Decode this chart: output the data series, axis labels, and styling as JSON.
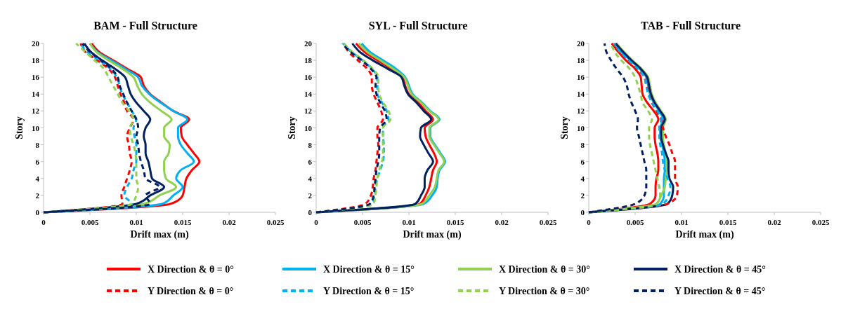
{
  "chart_data": [
    {
      "type": "line",
      "title": "BAM - Full Structure",
      "xlabel": "Drift max (m)",
      "ylabel": "Story",
      "xlim": [
        0,
        0.025
      ],
      "xticks": [
        0,
        0.005,
        0.01,
        0.015,
        0.02,
        0.025
      ],
      "ylim": [
        0,
        20
      ],
      "yticks": [
        0,
        2,
        4,
        6,
        8,
        10,
        12,
        14,
        16,
        18,
        20
      ],
      "legend": "bottom",
      "series": [
        {
          "name": "X Direction & θ = 0°",
          "color": "#ff0000",
          "line_style": "solid",
          "x": [
            0,
            0.0137,
            0.015,
            0.0152,
            0.0154,
            0.016,
            0.0168,
            0.0162,
            0.0155,
            0.0149,
            0.0148,
            0.0157,
            0.014,
            0.0127,
            0.0115,
            0.0108,
            0.0105,
            0.009,
            0.0075,
            0.006,
            0.0052
          ],
          "values": [
            0,
            1,
            2,
            3,
            4,
            5,
            6,
            7,
            8,
            9,
            10,
            11,
            12,
            13,
            14,
            15,
            16,
            17,
            18,
            19,
            20
          ]
        },
        {
          "name": "X Direction & θ = 15°",
          "color": "#00b0f0",
          "line_style": "solid",
          "x": [
            0,
            0.0128,
            0.014,
            0.015,
            0.0143,
            0.0148,
            0.0162,
            0.0155,
            0.0148,
            0.0145,
            0.0145,
            0.0155,
            0.014,
            0.0126,
            0.0114,
            0.0106,
            0.0102,
            0.0088,
            0.0073,
            0.0058,
            0.005
          ],
          "values": [
            0,
            1,
            2,
            3,
            4,
            5,
            6,
            7,
            8,
            9,
            10,
            11,
            12,
            13,
            14,
            15,
            16,
            17,
            18,
            19,
            20
          ]
        },
        {
          "name": "X Direction & θ = 30°",
          "color": "#92d050",
          "line_style": "solid",
          "x": [
            0,
            0.0108,
            0.0125,
            0.0143,
            0.0132,
            0.013,
            0.013,
            0.0135,
            0.0136,
            0.013,
            0.013,
            0.0138,
            0.0127,
            0.0115,
            0.0106,
            0.0101,
            0.0097,
            0.0085,
            0.007,
            0.0057,
            0.005
          ],
          "values": [
            0,
            1,
            2,
            3,
            4,
            5,
            6,
            7,
            8,
            9,
            10,
            11,
            12,
            13,
            14,
            15,
            16,
            17,
            18,
            19,
            20
          ]
        },
        {
          "name": "X Direction & θ = 45°",
          "color": "#002060",
          "line_style": "solid",
          "x": [
            0,
            0.01,
            0.0115,
            0.013,
            0.0117,
            0.0115,
            0.0113,
            0.011,
            0.011,
            0.0108,
            0.011,
            0.0115,
            0.0108,
            0.01,
            0.0094,
            0.0091,
            0.0088,
            0.0077,
            0.0063,
            0.0051,
            0.0044
          ],
          "values": [
            0,
            1,
            2,
            3,
            4,
            5,
            6,
            7,
            8,
            9,
            10,
            11,
            12,
            13,
            14,
            15,
            16,
            17,
            18,
            19,
            20
          ]
        },
        {
          "name": "Y Direction & θ = 0°",
          "color": "#ff0000",
          "line_style": "dashed",
          "x": [
            0,
            0.0085,
            0.0084,
            0.0087,
            0.009,
            0.0093,
            0.0095,
            0.0093,
            0.0092,
            0.009,
            0.0093,
            0.0097,
            0.009,
            0.0087,
            0.0083,
            0.008,
            0.0077,
            0.007,
            0.0058,
            0.0045,
            0.004
          ],
          "values": [
            0,
            1,
            2,
            3,
            4,
            5,
            6,
            7,
            8,
            9,
            10,
            11,
            12,
            13,
            14,
            15,
            16,
            17,
            18,
            19,
            20
          ]
        },
        {
          "name": "Y Direction & θ = 15°",
          "color": "#00b0f0",
          "line_style": "dashed",
          "x": [
            0,
            0.0095,
            0.0087,
            0.009,
            0.0095,
            0.0097,
            0.01,
            0.01,
            0.01,
            0.0098,
            0.0097,
            0.01,
            0.0095,
            0.009,
            0.0085,
            0.0082,
            0.0079,
            0.0072,
            0.006,
            0.0047,
            0.004
          ],
          "values": [
            0,
            1,
            2,
            3,
            4,
            5,
            6,
            7,
            8,
            9,
            10,
            11,
            12,
            13,
            14,
            15,
            16,
            17,
            18,
            19,
            20
          ]
        },
        {
          "name": "Y Direction & θ = 30°",
          "color": "#92d050",
          "line_style": "dashed",
          "x": [
            0,
            0.0095,
            0.01,
            0.0102,
            0.01,
            0.01,
            0.01,
            0.0099,
            0.0097,
            0.0094,
            0.0093,
            0.0097,
            0.0092,
            0.0085,
            0.008,
            0.0075,
            0.007,
            0.0065,
            0.0055,
            0.0045,
            0.0035
          ],
          "values": [
            0,
            1,
            2,
            3,
            4,
            5,
            6,
            7,
            8,
            9,
            10,
            11,
            12,
            13,
            14,
            15,
            16,
            17,
            18,
            19,
            20
          ]
        },
        {
          "name": "Y Direction & θ = 45°",
          "color": "#002060",
          "line_style": "dashed",
          "x": [
            0,
            0.0115,
            0.011,
            0.0125,
            0.011,
            0.0108,
            0.0105,
            0.0103,
            0.0102,
            0.01,
            0.0102,
            0.01,
            0.0095,
            0.009,
            0.0086,
            0.0082,
            0.008,
            0.0073,
            0.0062,
            0.005,
            0.0042
          ],
          "values": [
            0,
            1,
            2,
            3,
            4,
            5,
            6,
            7,
            8,
            9,
            10,
            11,
            12,
            13,
            14,
            15,
            16,
            17,
            18,
            19,
            20
          ]
        }
      ]
    },
    {
      "type": "line",
      "title": "SYL - Full Structure",
      "xlabel": "Drift max (m)",
      "ylabel": "Story",
      "xlim": [
        0,
        0.025
      ],
      "xticks": [
        0,
        0.005,
        0.01,
        0.015,
        0.02,
        0.025
      ],
      "ylim": [
        0,
        20
      ],
      "yticks": [
        0,
        2,
        4,
        6,
        8,
        10,
        12,
        14,
        16,
        18,
        20
      ],
      "series": [
        {
          "color": "#ff0000",
          "line_style": "solid",
          "x": [
            0,
            0.0112,
            0.0118,
            0.0122,
            0.0124,
            0.0126,
            0.013,
            0.0127,
            0.0122,
            0.0118,
            0.0117,
            0.0126,
            0.0118,
            0.011,
            0.01,
            0.0096,
            0.0093,
            0.0081,
            0.0066,
            0.0052,
            0.0043
          ],
          "values": [
            0,
            1,
            2,
            3,
            4,
            5,
            6,
            7,
            8,
            9,
            10,
            11,
            12,
            13,
            14,
            15,
            16,
            17,
            18,
            19,
            20
          ]
        },
        {
          "color": "#00b0f0",
          "line_style": "solid",
          "x": [
            0,
            0.0116,
            0.0125,
            0.013,
            0.0131,
            0.0133,
            0.0139,
            0.0134,
            0.0128,
            0.0123,
            0.0123,
            0.0133,
            0.0123,
            0.0114,
            0.0104,
            0.01,
            0.0096,
            0.0086,
            0.0072,
            0.0058,
            0.0049
          ],
          "values": [
            0,
            1,
            2,
            3,
            4,
            5,
            6,
            7,
            8,
            9,
            10,
            11,
            12,
            13,
            14,
            15,
            16,
            17,
            18,
            19,
            20
          ]
        },
        {
          "color": "#92d050",
          "line_style": "solid",
          "x": [
            0,
            0.0114,
            0.0122,
            0.0128,
            0.013,
            0.0132,
            0.0138,
            0.0133,
            0.0127,
            0.0122,
            0.0122,
            0.0132,
            0.0122,
            0.0113,
            0.0103,
            0.0099,
            0.0095,
            0.0083,
            0.0069,
            0.0055,
            0.0046
          ],
          "values": [
            0,
            1,
            2,
            3,
            4,
            5,
            6,
            7,
            8,
            9,
            10,
            11,
            12,
            13,
            14,
            15,
            16,
            17,
            18,
            19,
            20
          ]
        },
        {
          "color": "#002060",
          "line_style": "solid",
          "x": [
            0,
            0.0107,
            0.0113,
            0.0117,
            0.0117,
            0.012,
            0.0126,
            0.0121,
            0.0116,
            0.0112,
            0.0113,
            0.0124,
            0.0116,
            0.0108,
            0.0099,
            0.0095,
            0.0092,
            0.0077,
            0.0061,
            0.0047,
            0.0039
          ],
          "values": [
            0,
            1,
            2,
            3,
            4,
            5,
            6,
            7,
            8,
            9,
            10,
            11,
            12,
            13,
            14,
            15,
            16,
            17,
            18,
            19,
            20
          ]
        },
        {
          "color": "#ff0000",
          "line_style": "dashed",
          "x": [
            0,
            0.0053,
            0.0059,
            0.0061,
            0.0062,
            0.0064,
            0.0065,
            0.0066,
            0.0067,
            0.0066,
            0.0066,
            0.0072,
            0.007,
            0.0066,
            0.0062,
            0.006,
            0.006,
            0.0055,
            0.0045,
            0.0035,
            0.003
          ],
          "values": [
            0,
            1,
            2,
            3,
            4,
            5,
            6,
            7,
            8,
            9,
            10,
            11,
            12,
            13,
            14,
            15,
            16,
            17,
            18,
            19,
            20
          ]
        },
        {
          "color": "#00b0f0",
          "line_style": "dashed",
          "x": [
            0,
            0.006,
            0.0063,
            0.0064,
            0.0066,
            0.0069,
            0.0072,
            0.0073,
            0.0073,
            0.0072,
            0.0072,
            0.0078,
            0.0076,
            0.0071,
            0.0066,
            0.0066,
            0.0066,
            0.006,
            0.005,
            0.0038,
            0.0029
          ],
          "values": [
            0,
            1,
            2,
            3,
            4,
            5,
            6,
            7,
            8,
            9,
            10,
            11,
            12,
            13,
            14,
            15,
            16,
            17,
            18,
            19,
            20
          ]
        },
        {
          "color": "#92d050",
          "line_style": "dashed",
          "x": [
            0,
            0.0062,
            0.0064,
            0.0065,
            0.0066,
            0.0068,
            0.0071,
            0.0072,
            0.0072,
            0.0072,
            0.0072,
            0.008,
            0.0078,
            0.0072,
            0.0068,
            0.0067,
            0.0067,
            0.0061,
            0.0051,
            0.0039,
            0.003
          ],
          "values": [
            0,
            1,
            2,
            3,
            4,
            5,
            6,
            7,
            8,
            9,
            10,
            11,
            12,
            13,
            14,
            15,
            16,
            17,
            18,
            19,
            20
          ]
        },
        {
          "color": "#002060",
          "line_style": "dashed",
          "x": [
            0,
            0.0058,
            0.0062,
            0.0063,
            0.0064,
            0.0065,
            0.0067,
            0.0068,
            0.0068,
            0.0068,
            0.0069,
            0.0076,
            0.0074,
            0.0069,
            0.0065,
            0.0064,
            0.0065,
            0.0059,
            0.0049,
            0.0037,
            0.0028
          ],
          "values": [
            0,
            1,
            2,
            3,
            4,
            5,
            6,
            7,
            8,
            9,
            10,
            11,
            12,
            13,
            14,
            15,
            16,
            17,
            18,
            19,
            20
          ]
        }
      ]
    },
    {
      "type": "line",
      "title": "TAB - Full Structure",
      "xlabel": "Drift max (m)",
      "ylabel": "Story",
      "xlim": [
        0,
        0.025
      ],
      "xticks": [
        0,
        0.005,
        0.01,
        0.015,
        0.02,
        0.025
      ],
      "ylim": [
        0,
        20
      ],
      "yticks": [
        0,
        2,
        4,
        6,
        8,
        10,
        12,
        14,
        16,
        18,
        20
      ],
      "series": [
        {
          "color": "#ff0000",
          "line_style": "solid",
          "x": [
            0,
            0.0066,
            0.0072,
            0.0072,
            0.0073,
            0.0075,
            0.0075,
            0.0074,
            0.0072,
            0.0071,
            0.0071,
            0.0075,
            0.007,
            0.0063,
            0.0058,
            0.0057,
            0.0056,
            0.005,
            0.004,
            0.0032,
            0.0025
          ],
          "values": [
            0,
            1,
            2,
            3,
            4,
            5,
            6,
            7,
            8,
            9,
            10,
            11,
            12,
            13,
            14,
            15,
            16,
            17,
            18,
            19,
            20
          ]
        },
        {
          "color": "#00b0f0",
          "line_style": "solid",
          "x": [
            0,
            0.0077,
            0.0081,
            0.0081,
            0.0081,
            0.0082,
            0.0082,
            0.0081,
            0.0079,
            0.0077,
            0.0077,
            0.008,
            0.0076,
            0.007,
            0.0066,
            0.0064,
            0.0062,
            0.0055,
            0.0045,
            0.0035,
            0.0028
          ],
          "values": [
            0,
            1,
            2,
            3,
            4,
            5,
            6,
            7,
            8,
            9,
            10,
            11,
            12,
            13,
            14,
            15,
            16,
            17,
            18,
            19,
            20
          ]
        },
        {
          "color": "#92d050",
          "line_style": "solid",
          "x": [
            0,
            0.0073,
            0.0078,
            0.0082,
            0.0083,
            0.0084,
            0.0084,
            0.0083,
            0.0081,
            0.008,
            0.008,
            0.0083,
            0.0078,
            0.0072,
            0.0068,
            0.0066,
            0.0064,
            0.0057,
            0.0047,
            0.0038,
            0.003
          ],
          "values": [
            0,
            1,
            2,
            3,
            4,
            5,
            6,
            7,
            8,
            9,
            10,
            11,
            12,
            13,
            14,
            15,
            16,
            17,
            18,
            19,
            20
          ]
        },
        {
          "color": "#002060",
          "line_style": "solid",
          "x": [
            0,
            0.0085,
            0.009,
            0.0091,
            0.0087,
            0.0086,
            0.0086,
            0.0083,
            0.008,
            0.0078,
            0.0078,
            0.0082,
            0.0077,
            0.0071,
            0.0067,
            0.0065,
            0.0063,
            0.0056,
            0.0046,
            0.0037,
            0.0029
          ],
          "values": [
            0,
            1,
            2,
            3,
            4,
            5,
            6,
            7,
            8,
            9,
            10,
            11,
            12,
            13,
            14,
            15,
            16,
            17,
            18,
            19,
            20
          ]
        },
        {
          "color": "#ff0000",
          "line_style": "dashed",
          "x": [
            0,
            0.0085,
            0.0095,
            0.0096,
            0.0093,
            0.0093,
            0.0093,
            0.009,
            0.0087,
            0.0083,
            0.008,
            0.0078,
            0.0073,
            0.0068,
            0.0065,
            0.0062,
            0.006,
            0.0052,
            0.0042,
            0.0032,
            0.0025
          ],
          "values": [
            0,
            1,
            2,
            3,
            4,
            5,
            6,
            7,
            8,
            9,
            10,
            11,
            12,
            13,
            14,
            15,
            16,
            17,
            18,
            19,
            20
          ]
        },
        {
          "color": "#00b0f0",
          "line_style": "dashed",
          "x": [
            0,
            0.008,
            0.0086,
            0.0088,
            0.0085,
            0.0082,
            0.008,
            0.0079,
            0.0077,
            0.0076,
            0.0076,
            0.0078,
            0.0074,
            0.0068,
            0.0064,
            0.0062,
            0.006,
            0.0053,
            0.0043,
            0.0034,
            0.0027
          ],
          "values": [
            0,
            1,
            2,
            3,
            4,
            5,
            6,
            7,
            8,
            9,
            10,
            11,
            12,
            13,
            14,
            15,
            16,
            17,
            18,
            19,
            20
          ]
        },
        {
          "color": "#92d050",
          "line_style": "dashed",
          "x": [
            0,
            0.0073,
            0.0077,
            0.0076,
            0.0074,
            0.0072,
            0.007,
            0.0068,
            0.0066,
            0.0065,
            0.0065,
            0.0068,
            0.0064,
            0.0058,
            0.0056,
            0.0053,
            0.005,
            0.0044,
            0.0035,
            0.0028,
            0.0024
          ],
          "values": [
            0,
            1,
            2,
            3,
            4,
            5,
            6,
            7,
            8,
            9,
            10,
            11,
            12,
            13,
            14,
            15,
            16,
            17,
            18,
            19,
            20
          ]
        },
        {
          "color": "#002060",
          "line_style": "dashed",
          "x": [
            0,
            0.005,
            0.006,
            0.0062,
            0.0062,
            0.0062,
            0.006,
            0.0058,
            0.0056,
            0.0054,
            0.0052,
            0.0053,
            0.005,
            0.0046,
            0.0043,
            0.0041,
            0.0037,
            0.003,
            0.0024,
            0.0019,
            0.0017
          ],
          "values": [
            0,
            1,
            2,
            3,
            4,
            5,
            6,
            7,
            8,
            9,
            10,
            11,
            12,
            13,
            14,
            15,
            16,
            17,
            18,
            19,
            20
          ]
        }
      ]
    }
  ]
}
